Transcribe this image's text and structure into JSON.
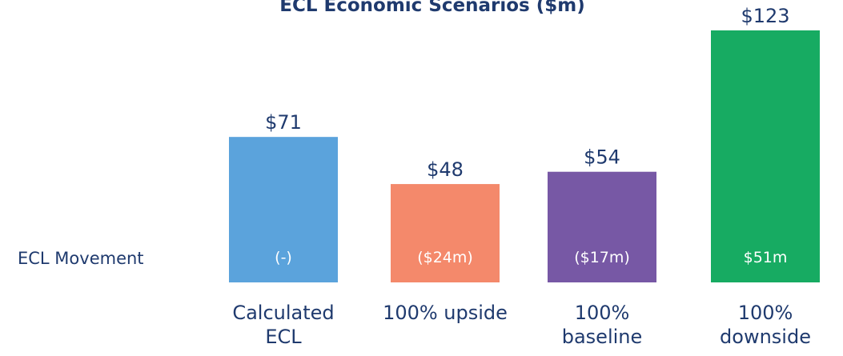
{
  "chart_data": {
    "type": "bar",
    "title": "ECL Economic Scenarios ($m)",
    "categories": [
      "Calculated ECL",
      "100% upside",
      "100% baseline",
      "100% downside"
    ],
    "values": [
      71,
      48,
      54,
      123
    ],
    "value_labels": [
      "$71",
      "$48",
      "$54",
      "$123"
    ],
    "colors": [
      "#5ba3dc",
      "#f4896b",
      "#7758a5",
      "#17ab62"
    ],
    "movement_label": "ECL Movement",
    "movements": [
      "(-)",
      "($24m)",
      "($17m)",
      "$51m"
    ]
  }
}
